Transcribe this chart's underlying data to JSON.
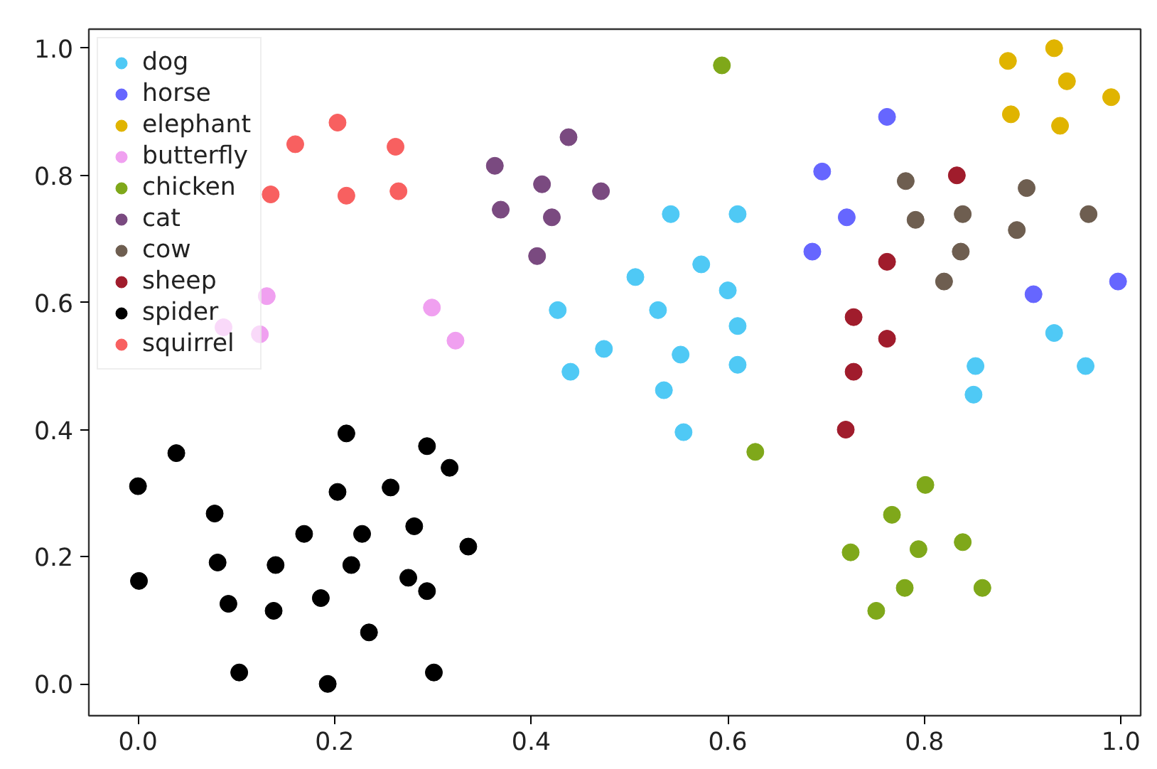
{
  "chart_data": {
    "type": "scatter",
    "marker": "circle",
    "grid": false,
    "legend": "top left",
    "xlim": [
      -0.05,
      1.02
    ],
    "ylim": [
      -0.05,
      1.03
    ],
    "xticks": [
      {
        "value": 0,
        "label": "0.0"
      },
      0.2,
      0.4,
      0.6,
      0.8,
      {
        "value": 1,
        "label": "1.0"
      }
    ],
    "yticks": [
      {
        "value": 0,
        "label": "0.0"
      },
      0.2,
      0.4,
      0.6,
      0.8,
      {
        "value": 1,
        "label": "1.0"
      }
    ],
    "series": [
      {
        "name": "dog",
        "color": "#4fc9f5",
        "x": [
          0.542,
          0.61,
          0.573,
          0.506,
          0.6,
          0.427,
          0.529,
          0.61,
          0.474,
          0.552,
          0.61,
          0.44,
          0.535,
          0.555,
          0.932,
          0.964,
          0.852,
          0.85
        ],
        "values": [
          0.739,
          0.739,
          0.66,
          0.64,
          0.619,
          0.588,
          0.588,
          0.563,
          0.527,
          0.518,
          0.502,
          0.491,
          0.462,
          0.396,
          0.552,
          0.5,
          0.5,
          0.455
        ]
      },
      {
        "name": "horse",
        "color": "#6666ff",
        "x": [
          0.762,
          0.696,
          0.721,
          0.686,
          0.911,
          0.997
        ],
        "values": [
          0.892,
          0.806,
          0.734,
          0.68,
          0.613,
          0.633
        ]
      },
      {
        "name": "elephant",
        "color": "#e0b400",
        "x": [
          0.932,
          0.885,
          0.945,
          0.99,
          0.888,
          0.938
        ],
        "values": [
          1.0,
          0.98,
          0.948,
          0.923,
          0.896,
          0.878
        ]
      },
      {
        "name": "butterfly",
        "color": "#f0a0f0",
        "x": [
          0.299,
          0.323,
          0.131,
          0.087,
          0.124
        ],
        "values": [
          0.592,
          0.54,
          0.61,
          0.561,
          0.55
        ]
      },
      {
        "name": "chicken",
        "color": "#7fa81a",
        "x": [
          0.594,
          0.628,
          0.801,
          0.767,
          0.725,
          0.794,
          0.839,
          0.859,
          0.78,
          0.751
        ],
        "values": [
          0.973,
          0.365,
          0.313,
          0.266,
          0.207,
          0.212,
          0.223,
          0.151,
          0.151,
          0.115
        ]
      },
      {
        "name": "cat",
        "color": "#7a4a80",
        "x": [
          0.438,
          0.363,
          0.411,
          0.471,
          0.369,
          0.421,
          0.406
        ],
        "values": [
          0.86,
          0.815,
          0.786,
          0.775,
          0.746,
          0.734,
          0.673
        ]
      },
      {
        "name": "cow",
        "color": "#6e5e50",
        "x": [
          0.781,
          0.904,
          0.839,
          0.791,
          0.967,
          0.894,
          0.837,
          0.82
        ],
        "values": [
          0.791,
          0.78,
          0.739,
          0.73,
          0.739,
          0.714,
          0.68,
          0.633
        ]
      },
      {
        "name": "sheep",
        "color": "#a01c2c",
        "x": [
          0.833,
          0.762,
          0.728,
          0.762,
          0.728,
          0.72
        ],
        "values": [
          0.8,
          0.664,
          0.577,
          0.543,
          0.491,
          0.4
        ]
      },
      {
        "name": "spider",
        "color": "#000000",
        "x": [
          0.001,
          0.081,
          0.092,
          0.14,
          0.138,
          0.169,
          0.103,
          0.193,
          0.186,
          0.217,
          0.228,
          0.235,
          0.257,
          0.281,
          0.275,
          0.294,
          0.317,
          0.294,
          0.301,
          0.336,
          0.039,
          0.212,
          0.203,
          0.078,
          0.0
        ],
        "values": [
          0.162,
          0.191,
          0.126,
          0.187,
          0.115,
          0.236,
          0.018,
          0.0,
          0.135,
          0.187,
          0.236,
          0.081,
          0.309,
          0.248,
          0.167,
          0.374,
          0.34,
          0.146,
          0.018,
          0.216,
          0.363,
          0.394,
          0.302,
          0.268,
          0.311
        ]
      },
      {
        "name": "squirrel",
        "color": "#f86060",
        "x": [
          0.262,
          0.265,
          0.203,
          0.16,
          0.212,
          0.135
        ],
        "values": [
          0.845,
          0.775,
          0.883,
          0.849,
          0.768,
          0.77
        ]
      }
    ]
  }
}
